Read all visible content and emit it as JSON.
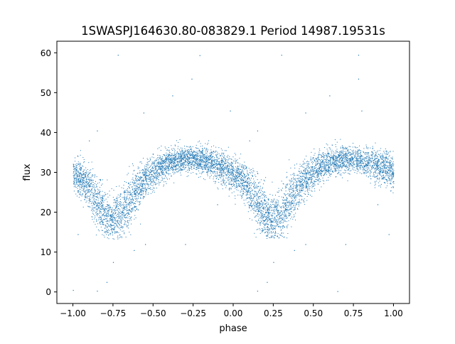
{
  "chart_data": {
    "type": "scatter",
    "title": "1SWASPJ164630.80-083829.1 Period 14987.19531s",
    "xlabel": "phase",
    "ylabel": "flux",
    "xlim": [
      -1.1,
      1.1
    ],
    "ylim": [
      -2.9,
      62.9
    ],
    "xticks": [
      -1.0,
      -0.75,
      -0.5,
      -0.25,
      0.0,
      0.25,
      0.5,
      0.75,
      1.0
    ],
    "xtick_labels": [
      "−1.00",
      "−0.75",
      "−0.50",
      "−0.25",
      "0.00",
      "0.25",
      "0.50",
      "0.75",
      "1.00"
    ],
    "yticks": [
      0,
      10,
      20,
      30,
      40,
      50,
      60
    ],
    "ytick_labels": [
      "0",
      "10",
      "20",
      "30",
      "40",
      "50",
      "60"
    ],
    "grid": false,
    "marker_color": "#1f77b4",
    "curve_profile": {
      "phase": [
        0.0,
        0.05,
        0.1,
        0.15,
        0.2,
        0.25,
        0.3,
        0.35,
        0.4,
        0.45,
        0.5,
        0.55,
        0.6,
        0.65,
        0.7,
        0.75,
        0.8,
        0.85,
        0.9,
        0.95,
        1.0
      ],
      "flux": [
        30,
        28.5,
        26,
        22.5,
        19.5,
        18.5,
        19.5,
        22.5,
        26,
        28.5,
        30,
        31.5,
        32.5,
        33,
        33.5,
        33.5,
        33,
        32.5,
        31.5,
        31,
        30
      ],
      "scatter": [
        4,
        4,
        5,
        6,
        6,
        5,
        6,
        6,
        5,
        4,
        4,
        3.5,
        3,
        3,
        3,
        3,
        3,
        3.5,
        3.5,
        4,
        4
      ]
    },
    "outliers": [
      [
        -0.72,
        59.5
      ],
      [
        0.3,
        59.5
      ],
      [
        0.78,
        59.5
      ],
      [
        -0.21,
        59.4
      ],
      [
        -0.26,
        53.5
      ],
      [
        0.78,
        53.5
      ],
      [
        -0.38,
        49.3
      ],
      [
        0.6,
        49.3
      ],
      [
        -0.02,
        45.5
      ],
      [
        0.8,
        45.5
      ],
      [
        -0.56,
        45.0
      ],
      [
        0.45,
        45.0
      ],
      [
        -0.85,
        40.5
      ],
      [
        0.15,
        40.5
      ],
      [
        -0.9,
        38.0
      ],
      [
        0.1,
        38.0
      ],
      [
        -0.62,
        10.5
      ],
      [
        0.38,
        10.5
      ],
      [
        -0.55,
        12.0
      ],
      [
        0.45,
        12.0
      ],
      [
        -0.75,
        7.5
      ],
      [
        0.25,
        7.5
      ],
      [
        -0.79,
        2.5
      ],
      [
        0.21,
        2.5
      ],
      [
        -0.97,
        14.5
      ],
      [
        0.97,
        14.5
      ],
      [
        -0.3,
        12.0
      ],
      [
        0.7,
        12.0
      ],
      [
        -0.85,
        0.3
      ],
      [
        0.15,
        0.3
      ],
      [
        -0.1,
        22.0
      ],
      [
        0.9,
        22.0
      ],
      [
        -1.0,
        0.5
      ],
      [
        0.65,
        0.2
      ]
    ]
  }
}
